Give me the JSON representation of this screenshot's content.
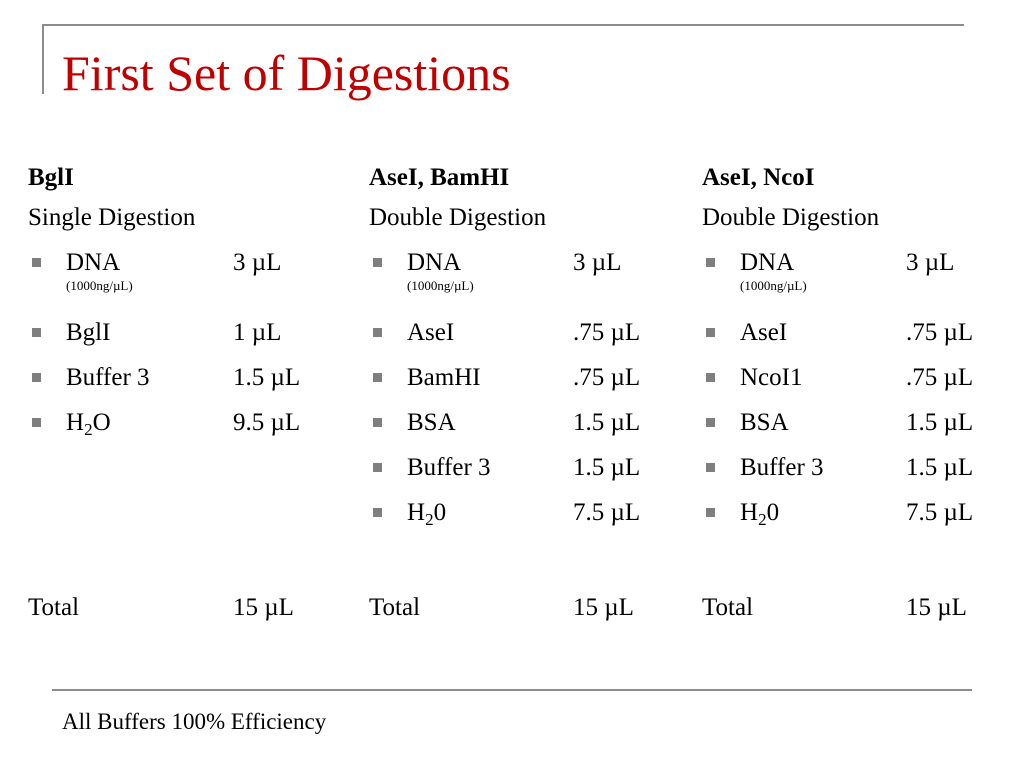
{
  "colors": {
    "title": "#c00000",
    "rule": "#8c8c8c",
    "bullet": "#7f7f7f",
    "text": "#000000"
  },
  "title": "First Set of Digestions",
  "columns": [
    {
      "heading": "BglI",
      "subheading": "Single Digestion",
      "items": [
        {
          "name": "DNA",
          "note": "(1000ng/µL)",
          "amount": "3 µL",
          "bullet_icon": "square-bullet-icon"
        },
        {
          "name": "BglI",
          "amount": "1 µL",
          "bullet_icon": "square-bullet-icon"
        },
        {
          "name": "Buffer 3",
          "amount": "1.5 µL",
          "bullet_icon": "square-bullet-icon"
        },
        {
          "name_main": "H",
          "name_sub": "2",
          "name_after": "O",
          "amount": "9.5 µL",
          "bullet_icon": "square-bullet-icon"
        }
      ],
      "total_label": "Total",
      "total_value": "15 µL"
    },
    {
      "heading": "AseI, BamHI",
      "subheading": "Double Digestion",
      "items": [
        {
          "name": "DNA",
          "note": "(1000ng/µL)",
          "amount": "3 µL",
          "bullet_icon": "square-bullet-icon"
        },
        {
          "name": "AseI",
          "amount": ".75 µL",
          "bullet_icon": "square-bullet-icon"
        },
        {
          "name": "BamHI",
          "amount": ".75 µL",
          "bullet_icon": "square-bullet-icon"
        },
        {
          "name": "BSA",
          "amount": "1.5 µL",
          "bullet_icon": "square-bullet-icon"
        },
        {
          "name": "Buffer 3",
          "amount": "1.5 µL",
          "bullet_icon": "square-bullet-icon"
        },
        {
          "name_main": "H",
          "name_sub": "2",
          "name_after": "0",
          "amount": "7.5 µL",
          "bullet_icon": "square-bullet-icon"
        }
      ],
      "total_label": "Total",
      "total_value": "15 µL"
    },
    {
      "heading": "AseI, NcoI",
      "subheading": "Double Digestion",
      "items": [
        {
          "name": "DNA",
          "note": "(1000ng/µL)",
          "amount": "3 µL",
          "bullet_icon": "square-bullet-icon"
        },
        {
          "name": "AseI",
          "amount": ".75 µL",
          "bullet_icon": "square-bullet-icon"
        },
        {
          "name": "NcoI1",
          "amount": ".75 µL",
          "bullet_icon": "square-bullet-icon"
        },
        {
          "name": "BSA",
          "amount": "1.5 µL",
          "bullet_icon": "square-bullet-icon"
        },
        {
          "name": "Buffer 3",
          "amount": "1.5 µL",
          "bullet_icon": "square-bullet-icon"
        },
        {
          "name_main": "H",
          "name_sub": "2",
          "name_after": "0",
          "amount": "7.5 µL",
          "bullet_icon": "square-bullet-icon"
        }
      ],
      "total_label": "Total",
      "total_value": "15 µL"
    }
  ],
  "footer": "All Buffers 100% Efficiency"
}
